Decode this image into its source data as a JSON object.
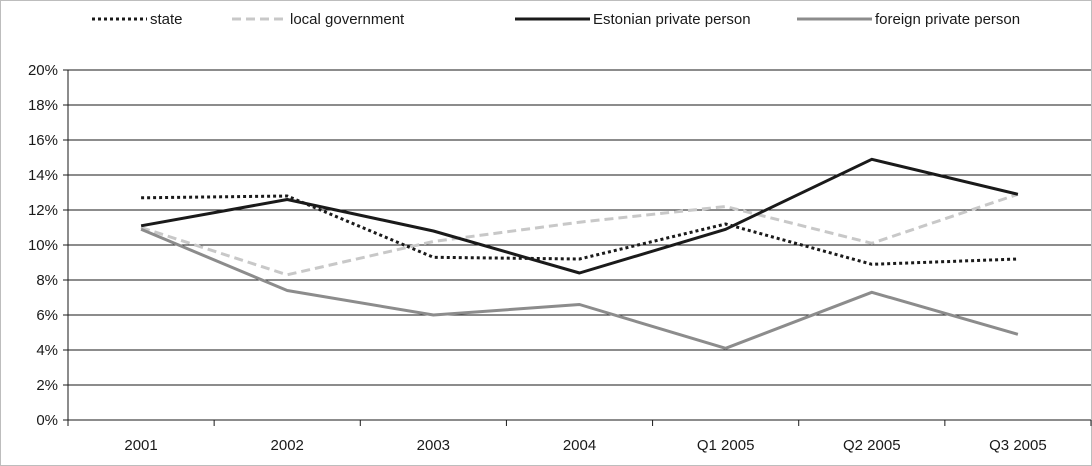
{
  "chart_data": {
    "type": "line",
    "categories": [
      "2001",
      "2002",
      "2003",
      "2004",
      "Q1 2005",
      "Q2 2005",
      "Q3 2005"
    ],
    "series": [
      {
        "name": "state",
        "values": [
          12.7,
          12.8,
          9.3,
          9.2,
          11.2,
          8.9,
          9.2
        ],
        "color": "#1a1a1a",
        "style": "dotted"
      },
      {
        "name": "local government",
        "values": [
          11.0,
          8.3,
          10.2,
          11.3,
          12.2,
          10.1,
          12.9
        ],
        "color": "#c8c8c8",
        "style": "dashed"
      },
      {
        "name": "Estonian private person",
        "values": [
          11.1,
          12.6,
          10.8,
          8.4,
          10.9,
          14.9,
          12.9
        ],
        "color": "#1a1a1a",
        "style": "solid"
      },
      {
        "name": "foreign private person",
        "values": [
          10.9,
          7.4,
          6.0,
          6.6,
          4.1,
          7.3,
          4.9
        ],
        "color": "#8c8c8c",
        "style": "solid"
      }
    ],
    "ylim": [
      0,
      20
    ],
    "yticks": [
      "0%",
      "2%",
      "4%",
      "6%",
      "8%",
      "10%",
      "12%",
      "14%",
      "16%",
      "18%",
      "20%"
    ],
    "grid": true,
    "legend": "top"
  }
}
